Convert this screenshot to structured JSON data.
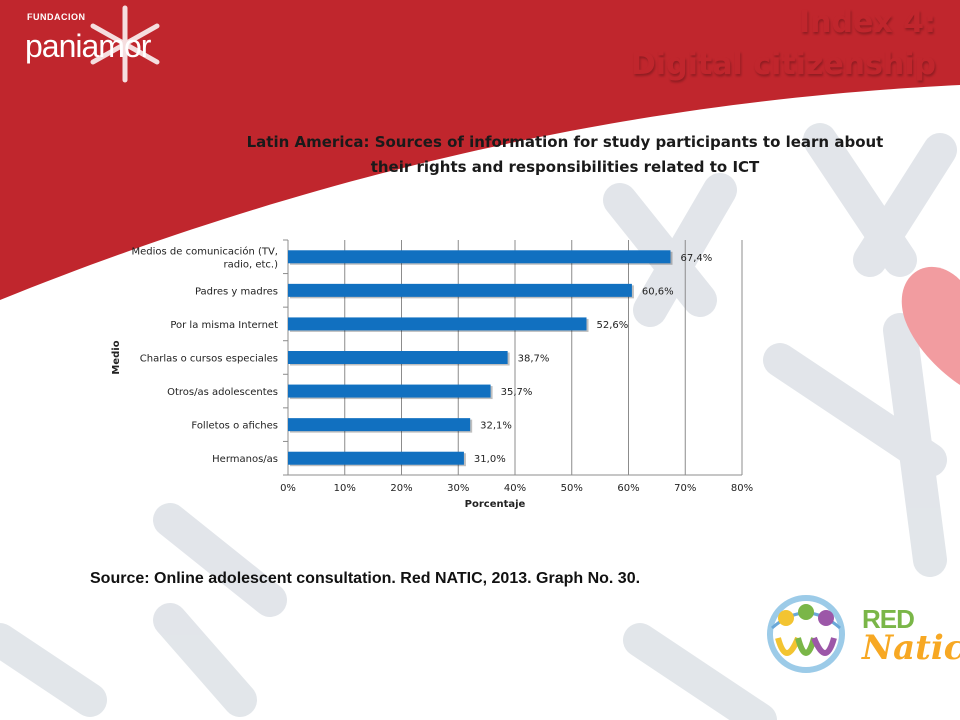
{
  "slide": {
    "title_line1": "Index 4:",
    "title_line2": "Digital citizenship",
    "source": "Source: Online adolescent consultation. Red NATIC, 2013. Graph No. 30."
  },
  "logos": {
    "fundacion_small": "FUNDACION",
    "fundacion_big": "paniamor",
    "rednatic_red": "RED",
    "rednatic_natic": "Natic"
  },
  "colors": {
    "brand_red": "#c0262d",
    "bar": "#1170c0",
    "heart": "#f29ca0",
    "pattern": "#dfe3e8"
  },
  "chart_data": {
    "type": "bar",
    "orientation": "horizontal",
    "title": "Latin America: Sources of information for study participants to learn about their rights and responsibilities related to ICT",
    "title_lines": [
      "Latin America: Sources of information for study participants to learn about",
      "their rights and responsibilities  related to ICT"
    ],
    "categories": [
      [
        "Medios de comunicación (TV,",
        "radio, etc.)"
      ],
      [
        "Padres y madres"
      ],
      [
        "Por la misma Internet"
      ],
      [
        "Charlas o cursos especiales"
      ],
      [
        "Otros/as adolescentes"
      ],
      [
        "Folletos o afiches"
      ],
      [
        "Hermanos/as"
      ]
    ],
    "values": [
      67.4,
      60.6,
      52.6,
      38.7,
      35.7,
      32.1,
      31.0
    ],
    "value_labels": [
      "67,4%",
      "60,6%",
      "52,6%",
      "38,7%",
      "35,7%",
      "32,1%",
      "31,0%"
    ],
    "xticks": [
      "0%",
      "10%",
      "20%",
      "30%",
      "40%",
      "50%",
      "60%",
      "70%",
      "80%"
    ],
    "xlim": [
      0,
      80
    ],
    "xlabel": "Porcentaje",
    "ylabel": "Medio",
    "grid": true
  }
}
